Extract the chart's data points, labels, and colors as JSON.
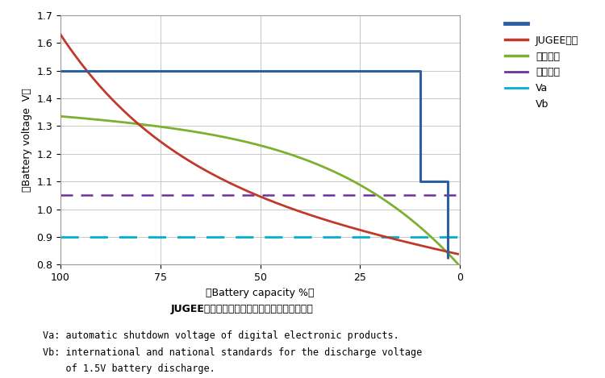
{
  "title": "JUGEE电池与碕性电池及镳氢电池放电电压对比",
  "xlabel": "（Battery capacity %）",
  "ylabel": "（Battery voltage  V）",
  "xlim": [
    100,
    0
  ],
  "ylim": [
    0.8,
    1.7
  ],
  "yticks": [
    0.8,
    0.9,
    1.0,
    1.1,
    1.2,
    1.3,
    1.4,
    1.5,
    1.6,
    1.7
  ],
  "xticks": [
    100,
    75,
    50,
    25,
    0
  ],
  "Va": 1.05,
  "Vb": 0.9,
  "Va_color": "#7030A0",
  "Vb_color": "#00B0D0",
  "jugee_color": "#2E5FA3",
  "alkaline_color": "#C0392B",
  "nimh_color": "#7DB030",
  "legend_label_jugee": "JUGEE电池",
  "legend_label_alkaline": "碕性电池",
  "legend_label_nimh": "镳氢电池",
  "legend_label_va": "Va",
  "legend_label_vb": "Vb",
  "caption_line1": "Va: automatic shutdown voltage of digital electronic products.",
  "caption_line2": "Vb: international and national standards for the discharge voltage",
  "caption_line3": "    of 1.5V battery discharge.",
  "background_color": "#FFFFFF",
  "grid_color": "#C8C8C8"
}
